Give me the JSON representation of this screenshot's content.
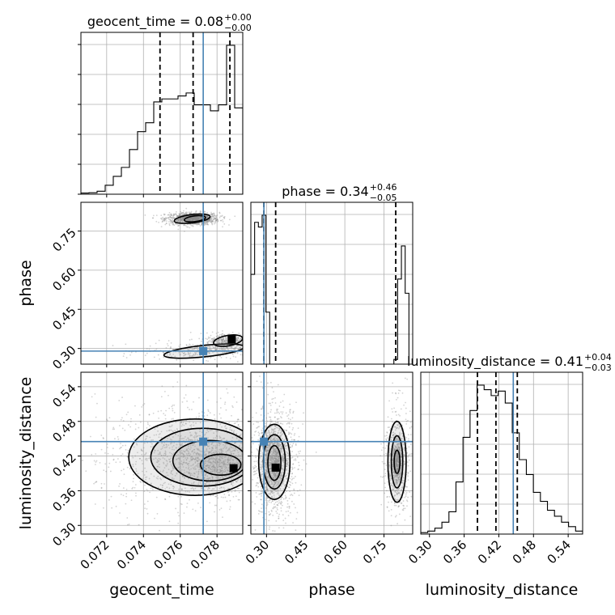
{
  "chart_data": {
    "type": "corner",
    "parameters": [
      "geocent_time",
      "phase",
      "luminosity_distance"
    ],
    "axis_labels": {
      "geocent_time": "geocent_time",
      "phase": "phase",
      "luminosity_distance": "luminosity_distance"
    },
    "ranges": {
      "geocent_time": [
        0.0706,
        0.0794
      ],
      "phase": [
        0.24,
        0.86
      ],
      "luminosity_distance": [
        0.285,
        0.565
      ]
    },
    "ticks": {
      "geocent_time": {
        "values": [
          0.072,
          0.074,
          0.076,
          0.078
        ],
        "labels": [
          "0.072",
          "0.074",
          "0.076",
          "0.078"
        ]
      },
      "phase": {
        "values": [
          0.3,
          0.45,
          0.6,
          0.75
        ],
        "labels": [
          "0.30",
          "0.45",
          "0.60",
          "0.75"
        ]
      },
      "luminosity_distance": {
        "values": [
          0.3,
          0.36,
          0.42,
          0.48,
          0.54
        ],
        "labels": [
          "0.30",
          "0.36",
          "0.42",
          "0.48",
          "0.54"
        ]
      }
    },
    "titles": [
      {
        "param": "geocent_time",
        "main": "geocent_time = 0.08",
        "upper": "+0.00",
        "lower": "−0.00"
      },
      {
        "param": "phase",
        "main": "phase = 0.34",
        "upper": "+0.46",
        "lower": "−0.05"
      },
      {
        "param": "luminosity_distance",
        "main": "luminosity_distance = 0.41",
        "upper": "+0.04",
        "lower": "−0.03"
      }
    ],
    "truths": {
      "geocent_time": 0.07725,
      "phase": 0.29,
      "luminosity_distance": 0.445
    },
    "quantiles": {
      "geocent_time": [
        0.0749,
        0.0767,
        0.0787
      ],
      "phase": [
        0.29,
        0.335,
        0.795
      ],
      "luminosity_distance": [
        0.383,
        0.415,
        0.452
      ]
    },
    "histograms": {
      "geocent_time": {
        "max": 50,
        "counts": [
          0.4,
          0.5,
          1,
          3,
          6,
          9,
          15,
          21,
          24,
          31,
          32,
          32,
          33,
          34,
          30,
          30,
          28,
          30,
          50,
          29
        ]
      },
      "phase": {
        "max": 63,
        "counts": [
          38,
          60,
          58,
          63,
          22,
          0,
          0,
          0,
          0,
          0,
          0,
          0,
          0,
          0,
          0,
          0,
          0,
          0,
          0,
          0,
          0,
          0,
          0,
          0,
          0,
          0,
          0,
          0,
          0,
          0,
          0,
          0,
          0,
          0,
          0,
          0,
          0,
          0,
          2,
          36,
          50,
          30,
          0
        ]
      },
      "luminosity_distance": {
        "max": 100,
        "counts": [
          1,
          2,
          4,
          8,
          15,
          35,
          65,
          83,
          100,
          97,
          93,
          96,
          88,
          68,
          50,
          40,
          28,
          22,
          16,
          12,
          8,
          5,
          2
        ]
      }
    },
    "hist2d": [
      {
        "x": "geocent_time",
        "y": "phase",
        "contours": [
          {
            "cx": 0.07665,
            "cy": 0.797,
            "rx": 0.00098,
            "ry": 0.016,
            "rot": -7
          },
          {
            "cx": 0.0768,
            "cy": 0.797,
            "rx": 0.00058,
            "ry": 0.011,
            "rot": -7
          },
          {
            "cx": 0.0773,
            "cy": 0.29,
            "rx": 0.0022,
            "ry": 0.022,
            "rot": -6
          },
          {
            "cx": 0.0786,
            "cy": 0.33,
            "rx": 0.0008,
            "ry": 0.02,
            "rot": -10
          }
        ],
        "modes": [
          {
            "x": 0.0788,
            "y": 0.335
          }
        ]
      },
      {
        "x": "geocent_time",
        "y": "luminosity_distance",
        "contours": [
          {
            "cx": 0.0768,
            "cy": 0.418,
            "rx": 0.0036,
            "ry": 0.066
          },
          {
            "cx": 0.0772,
            "cy": 0.418,
            "rx": 0.0028,
            "ry": 0.05
          },
          {
            "cx": 0.0776,
            "cy": 0.412,
            "rx": 0.002,
            "ry": 0.035
          },
          {
            "cx": 0.0782,
            "cy": 0.405,
            "rx": 0.0011,
            "ry": 0.018
          }
        ],
        "modes": [
          {
            "x": 0.0789,
            "y": 0.399
          }
        ]
      },
      {
        "x": "phase",
        "y": "luminosity_distance",
        "contours": [
          {
            "cx": 0.33,
            "cy": 0.41,
            "rx": 0.06,
            "ry": 0.065
          },
          {
            "cx": 0.33,
            "cy": 0.41,
            "rx": 0.042,
            "ry": 0.047
          },
          {
            "cx": 0.33,
            "cy": 0.408,
            "rx": 0.025,
            "ry": 0.03
          },
          {
            "cx": 0.8,
            "cy": 0.41,
            "rx": 0.035,
            "ry": 0.07
          },
          {
            "cx": 0.8,
            "cy": 0.41,
            "rx": 0.022,
            "ry": 0.045
          },
          {
            "cx": 0.8,
            "cy": 0.41,
            "rx": 0.011,
            "ry": 0.02
          }
        ],
        "modes": [
          {
            "x": 0.335,
            "y": 0.4
          }
        ]
      }
    ],
    "colors": {
      "truth": "#4682b4",
      "grid": "#b0b0b0",
      "line": "#000000",
      "sample": "#808080"
    }
  }
}
